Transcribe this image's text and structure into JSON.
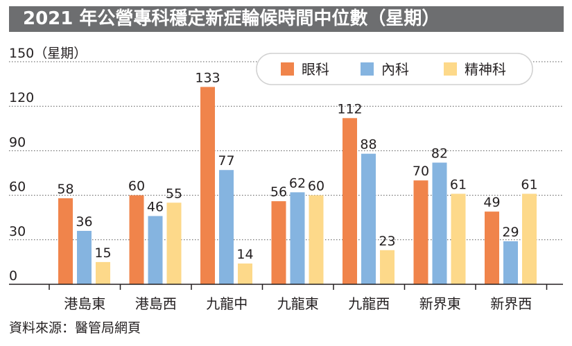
{
  "title": "2021 年公營專科穩定新症輪候時間中位數（星期）",
  "source": "資料來源：醫管局網頁",
  "chart_data": {
    "type": "bar",
    "title": "2021 年公營專科穩定新症輪候時間中位數（星期）",
    "xlabel": "",
    "ylabel": "150（星期）",
    "ylim": [
      0,
      150
    ],
    "yticks": [
      0,
      30,
      60,
      90,
      120
    ],
    "grid": "horizontal dotted",
    "legend_position": "top-right",
    "categories": [
      "港島東",
      "港島西",
      "九龍中",
      "九龍東",
      "九龍西",
      "新界東",
      "新界西"
    ],
    "series": [
      {
        "name": "眼科",
        "color": "#f0844b",
        "values": [
          58,
          60,
          133,
          56,
          112,
          70,
          49
        ]
      },
      {
        "name": "內科",
        "color": "#85b4e0",
        "values": [
          36,
          46,
          77,
          62,
          88,
          82,
          29
        ]
      },
      {
        "name": "精神科",
        "color": "#fdd98a",
        "values": [
          15,
          55,
          14,
          60,
          23,
          61,
          61
        ]
      }
    ]
  }
}
